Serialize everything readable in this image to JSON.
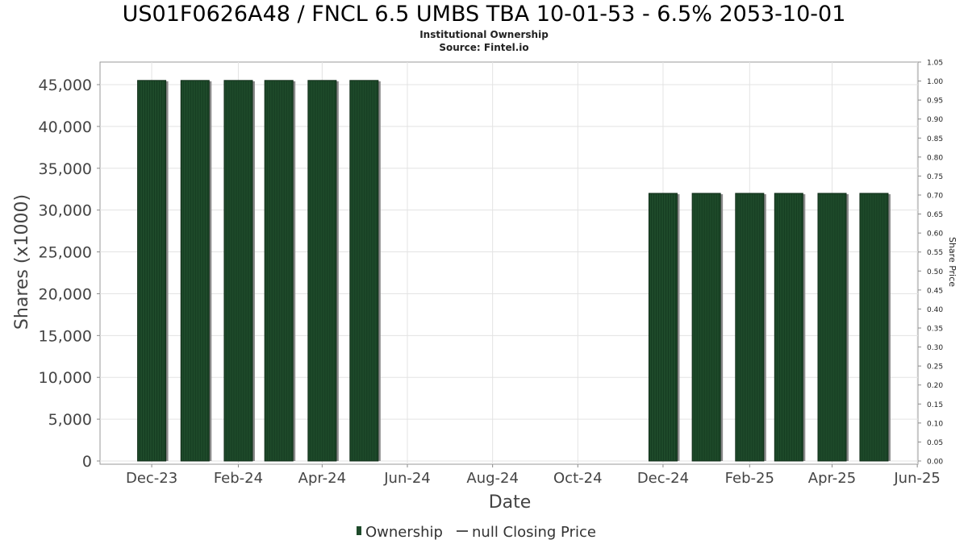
{
  "chart_data": {
    "type": "bar",
    "title": "US01F0626A48 / FNCL 6.5 UMBS TBA 10-01-53 - 6.5% 2053-10-01",
    "subtitles": [
      "Institutional Ownership",
      "Source: Fintel.io"
    ],
    "xlabel": "Date",
    "ylabel": "Shares (x1000)",
    "y2label": "Share Price",
    "x_ticks": [
      "Dec-23",
      "Feb-24",
      "Apr-24",
      "Jun-24",
      "Aug-24",
      "Oct-24",
      "Dec-24",
      "Feb-25",
      "Apr-25",
      "Jun-25"
    ],
    "y_ticks": [
      "0",
      "5,000",
      "10,000",
      "15,000",
      "20,000",
      "25,000",
      "30,000",
      "35,000",
      "40,000",
      "45,000"
    ],
    "y2_ticks": [
      "0.00",
      "0.05",
      "0.10",
      "0.15",
      "0.20",
      "0.25",
      "0.30",
      "0.35",
      "0.40",
      "0.45",
      "0.50",
      "0.55",
      "0.60",
      "0.65",
      "0.70",
      "0.75",
      "0.80",
      "0.85",
      "0.90",
      "0.95",
      "1.00",
      "1.05"
    ],
    "ylim": [
      0,
      48000
    ],
    "y2lim": [
      0,
      1.05
    ],
    "grid": true,
    "legend_placement": "bottom-center",
    "series": [
      {
        "name": "Ownership",
        "color": "#1e4a2a",
        "points": [
          {
            "date": "2023-12-01",
            "value": 45500
          },
          {
            "date": "2024-01-01",
            "value": 45500
          },
          {
            "date": "2024-02-01",
            "value": 45500
          },
          {
            "date": "2024-03-01",
            "value": 45500
          },
          {
            "date": "2024-04-01",
            "value": 45500
          },
          {
            "date": "2024-05-01",
            "value": 45500
          },
          {
            "date": "2024-12-01",
            "value": 32000
          },
          {
            "date": "2025-01-01",
            "value": 32000
          },
          {
            "date": "2025-02-01",
            "value": 32000
          },
          {
            "date": "2025-03-01",
            "value": 32000
          },
          {
            "date": "2025-04-01",
            "value": 32000
          },
          {
            "date": "2025-05-01",
            "value": 32000
          }
        ]
      },
      {
        "name": "null Closing Price",
        "color": "#555555",
        "points": []
      }
    ]
  }
}
